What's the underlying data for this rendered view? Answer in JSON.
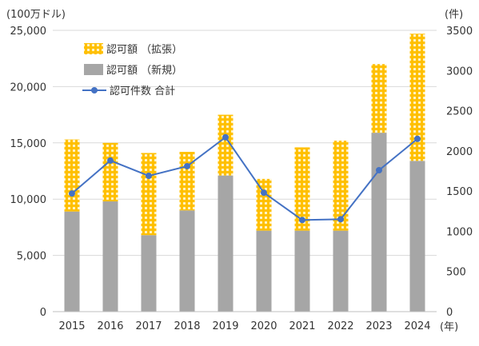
{
  "chart_data": {
    "type": "bar",
    "categories": [
      "2015",
      "2016",
      "2017",
      "2018",
      "2019",
      "2020",
      "2021",
      "2022",
      "2023",
      "2024"
    ],
    "x_unit": "(年)",
    "left_axis": {
      "unit": "(100万ドル)",
      "ylim": [
        0,
        25000
      ],
      "ticks": [
        "0",
        "5,000",
        "10,000",
        "15,000",
        "20,000",
        "25,000"
      ]
    },
    "right_axis": {
      "unit": "(件)",
      "ylim": [
        0,
        3500
      ],
      "ticks": [
        "0",
        "500",
        "1000",
        "1500",
        "2000",
        "2500",
        "3000",
        "3500"
      ]
    },
    "series": [
      {
        "name": "認可額 （新規）",
        "kind": "stacked-bar",
        "axis": "left",
        "values": [
          8900,
          9800,
          6800,
          9000,
          12100,
          7200,
          7200,
          7200,
          15900,
          13400
        ]
      },
      {
        "name": "認可額 （拡張）",
        "kind": "stacked-bar",
        "axis": "left",
        "values": [
          6400,
          5200,
          7300,
          5200,
          5400,
          4600,
          7400,
          8000,
          6100,
          11300
        ]
      },
      {
        "name": "認可件数 合計",
        "kind": "line",
        "axis": "right",
        "values": [
          1470,
          1880,
          1690,
          1810,
          2170,
          1480,
          1140,
          1150,
          1760,
          2150
        ]
      }
    ],
    "colors": {
      "new_bar": "#a6a6a6",
      "expand_bar": "#ffc000",
      "expand_pattern": "#fff2c2",
      "line": "#4472c4",
      "grid": "#d9d9d9"
    },
    "legend_placement": "top-left",
    "grid": true
  }
}
